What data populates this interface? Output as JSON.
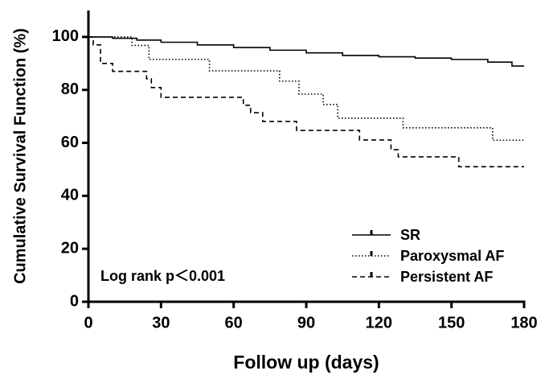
{
  "chart_data": {
    "type": "step",
    "xlabel": "Follow up (days)",
    "ylabel": "Cumulative Survival Function (%)",
    "annotation": "Log rank p＜0.001",
    "xlim": [
      0,
      180
    ],
    "xticks": [
      0,
      30,
      60,
      90,
      120,
      150,
      180
    ],
    "ylim": [
      0,
      110
    ],
    "yticks": [
      0,
      20,
      40,
      60,
      80,
      100
    ],
    "legend": "lower right",
    "series": [
      {
        "name": "SR",
        "color": "#000000",
        "line_style": "solid",
        "x": [
          0,
          10,
          20,
          30,
          45,
          60,
          75,
          90,
          105,
          120,
          135,
          150,
          165,
          175,
          180
        ],
        "values": [
          100,
          99.5,
          98.8,
          98,
          97,
          96,
          95,
          94,
          93,
          92.5,
          92,
          91.5,
          90.5,
          89,
          89
        ]
      },
      {
        "name": "Paroxysmal AF",
        "color": "#000000",
        "line_style": "dotted",
        "x": [
          0,
          18,
          25,
          50,
          79,
          87,
          97,
          103,
          130,
          167,
          180
        ],
        "values": [
          100,
          96.8,
          91.5,
          87.2,
          83.3,
          78.4,
          74.5,
          69.3,
          65.7,
          61,
          61
        ]
      },
      {
        "name": "Persistent AF",
        "color": "#000000",
        "line_style": "dashed",
        "x": [
          0,
          2,
          5,
          10,
          24,
          26,
          30,
          64,
          67,
          72,
          86,
          112,
          125,
          128,
          153,
          180
        ],
        "values": [
          100,
          97,
          90,
          87,
          84.2,
          80.9,
          77.2,
          74.2,
          71.4,
          68.1,
          64.7,
          61.1,
          57.4,
          54.7,
          51,
          51
        ]
      }
    ]
  }
}
